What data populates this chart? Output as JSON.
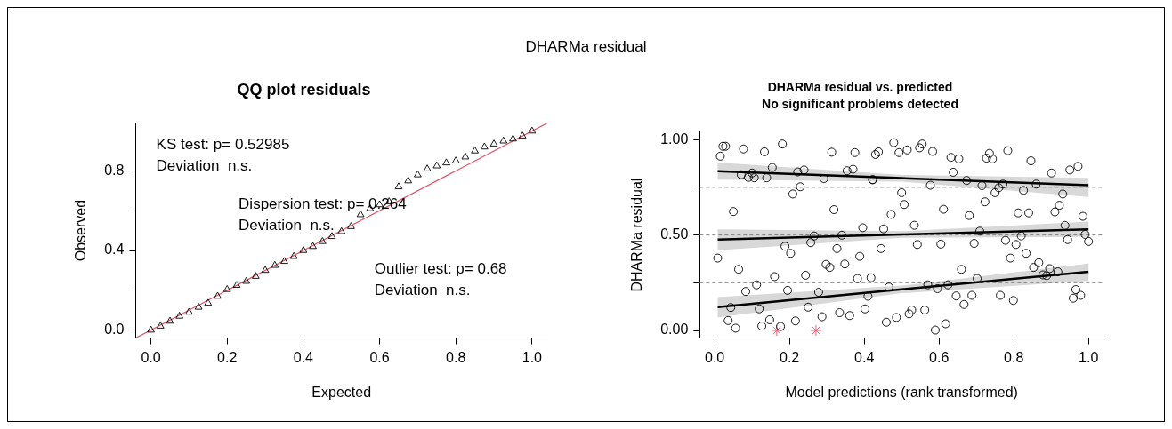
{
  "chart_data": [
    {
      "type": "other",
      "title": "DHARMa residual"
    },
    {
      "type": "scatter",
      "title": "QQ plot residuals",
      "xlabel": "Expected",
      "ylabel": "Observed",
      "marker": "triangle",
      "xlim": [
        -0.04,
        1.04
      ],
      "ylim": [
        -0.04,
        1.04
      ],
      "xticks": [
        {
          "value": 0,
          "label": "0.0"
        },
        {
          "value": 0.2,
          "label": "0.2"
        },
        {
          "value": 0.4,
          "label": "0.4"
        },
        {
          "value": 0.6,
          "label": "0.6"
        },
        {
          "value": 0.8,
          "label": "0.8"
        },
        {
          "value": 1,
          "label": "1.0"
        }
      ],
      "yticks": [
        {
          "value": 0,
          "label": "0.0"
        },
        {
          "value": 0.2,
          "label": null
        },
        {
          "value": 0.4,
          "label": "0.4"
        },
        {
          "value": 0.6,
          "label": null
        },
        {
          "value": 0.8,
          "label": "0.8"
        }
      ],
      "annotations": [
        "KS test: p= 0.52985\nDeviation  n.s.",
        "Dispersion test: p= 0.264\nDeviation  n.s.",
        "Outlier test: p= 0.68\nDeviation  n.s."
      ],
      "series": [
        {
          "type": "scatter",
          "color": "#000000",
          "x": [
            0,
            0.025,
            0.05,
            0.075,
            0.1,
            0.125,
            0.15,
            0.175,
            0.2,
            0.225,
            0.25,
            0.275,
            0.3,
            0.325,
            0.35,
            0.375,
            0.4,
            0.425,
            0.45,
            0.475,
            0.5,
            0.525,
            0.55,
            0.575,
            0.6,
            0.625,
            0.65,
            0.675,
            0.7,
            0.725,
            0.75,
            0.775,
            0.8,
            0.825,
            0.85,
            0.875,
            0.9,
            0.925,
            0.95,
            0.975,
            1
          ],
          "values": [
            0,
            0.02,
            0.045,
            0.07,
            0.09,
            0.115,
            0.135,
            0.17,
            0.204,
            0.225,
            0.245,
            0.27,
            0.3,
            0.325,
            0.345,
            0.37,
            0.4,
            0.42,
            0.445,
            0.47,
            0.495,
            0.52,
            0.58,
            0.61,
            0.63,
            0.645,
            0.72,
            0.75,
            0.78,
            0.81,
            0.825,
            0.84,
            0.85,
            0.87,
            0.9,
            0.92,
            0.935,
            0.95,
            0.96,
            0.975,
            1
          ]
        },
        {
          "type": "line",
          "color": "#df536b",
          "marker": "none",
          "x": [
            -0.04,
            1.04
          ],
          "values": [
            -0.04,
            1.04
          ]
        }
      ]
    },
    {
      "type": "scatter",
      "title": "DHARMa residual vs. predicted",
      "subtitle": "No significant problems detected",
      "xlabel": "Model predictions (rank transformed)",
      "ylabel": "DHARMa residual",
      "marker": "circle",
      "xlim": [
        -0.04,
        1.04
      ],
      "ylim": [
        -0.04,
        1.04
      ],
      "xticks": [
        {
          "value": 0,
          "label": "0.0"
        },
        {
          "value": 0.2,
          "label": "0.2"
        },
        {
          "value": 0.4,
          "label": "0.4"
        },
        {
          "value": 0.6,
          "label": "0.6"
        },
        {
          "value": 0.8,
          "label": "0.8"
        },
        {
          "value": 1,
          "label": "1.0"
        }
      ],
      "yticks": [
        {
          "value": 0,
          "label": "0.00"
        },
        {
          "value": 0.25,
          "label": null
        },
        {
          "value": 0.5,
          "label": "0.50"
        },
        {
          "value": 0.75,
          "label": null
        },
        {
          "value": 1,
          "label": "1.00"
        }
      ],
      "ref_lines": [
        {
          "axis": "y",
          "value": 0.25,
          "color": "#808080",
          "line_style": "dashed"
        },
        {
          "axis": "y",
          "value": 0.5,
          "color": "#808080",
          "line_style": "dashed"
        },
        {
          "axis": "y",
          "value": 0.75,
          "color": "#808080",
          "line_style": "dashed"
        }
      ],
      "series": [
        {
          "type": "scatter",
          "color": "#000000",
          "x": [
            0.015,
            0.022,
            0.029,
            0.077,
            0.133,
            0.181,
            0.313,
            0.375,
            0.071,
            0.09,
            0.1,
            0.106,
            0.139,
            0.154,
            0.209,
            0.222,
            0.229,
            0.239,
            0.292,
            0.354,
            0.37,
            0.422,
            0.05,
            0.319,
            0.188,
            0.203,
            0.257,
            0.266,
            0.396,
            0.34,
            0.327,
            0.008,
            0.064,
            0.083,
            0.112,
            0.16,
            0.195,
            0.243,
            0.278,
            0.298,
            0.308,
            0.348,
            0.382,
            0.388,
            0.418,
            0.043,
            0.036,
            0.056,
            0.119,
            0.126,
            0.147,
            0.176,
            0.216,
            0.25,
            0.287,
            0.334,
            0.361,
            0.402,
            0.41,
            0.43,
            0.438,
            0.479,
            0.493,
            0.515,
            0.548,
            0.555,
            0.583,
            0.632,
            0.653,
            0.727,
            0.735,
            0.743,
            0.784,
            0.846,
            0.95,
            0.972,
            0.901,
            0.423,
            0.5,
            0.507,
            0.472,
            0.577,
            0.638,
            0.674,
            0.715,
            0.723,
            0.75,
            0.76,
            0.771,
            0.826,
            0.86,
            0.931,
            0.922,
            0.91,
            0.812,
            0.84,
            0.612,
            0.681,
            0.985,
            0.452,
            0.445,
            0.534,
            0.542,
            0.605,
            0.694,
            0.709,
            0.778,
            0.806,
            0.82,
            0.791,
            0.833,
            0.937,
            0.944,
            0.991,
            1,
            0.466,
            0.459,
            0.486,
            0.52,
            0.527,
            0.562,
            0.57,
            0.596,
            0.624,
            0.59,
            0.618,
            0.646,
            0.667,
            0.688,
            0.66,
            0.702,
            0.764,
            0.799,
            0.853,
            0.867,
            0.878,
            0.888,
            0.896,
            0.918,
            0.959,
            0.966,
            0.979
          ],
          "values": [
            0.913,
            0.965,
            0.965,
            0.951,
            0.936,
            0.977,
            0.934,
            0.932,
            0.816,
            0.802,
            0.825,
            0.8,
            0.8,
            0.854,
            0.715,
            0.831,
            0.753,
            0.841,
            0.796,
            0.837,
            0.845,
            0.79,
            0.623,
            0.633,
            0.441,
            0.404,
            0.46,
            0.495,
            0.538,
            0.499,
            0.429,
            0.379,
            0.32,
            0.204,
            0.239,
            0.282,
            0.21,
            0.289,
            0.2,
            0.346,
            0.33,
            0.348,
            0.272,
            0.388,
            0.276,
            0.12,
            0.052,
            0.012,
            0.113,
            0.023,
            0.056,
            0.021,
            0.05,
            0.122,
            0.072,
            0.093,
            0.078,
            0.113,
            0.179,
            0.922,
            0.936,
            0.984,
            0.932,
            0.946,
            0.957,
            0.977,
            0.938,
            0.907,
            0.899,
            0.903,
            0.928,
            0.899,
            0.942,
            0.889,
            0.841,
            0.86,
            0.825,
            0.79,
            0.722,
            0.66,
            0.608,
            0.761,
            0.829,
            0.786,
            0.759,
            0.674,
            0.722,
            0.748,
            0.767,
            0.734,
            0.767,
            0.715,
            0.656,
            0.621,
            0.616,
            0.616,
            0.635,
            0.602,
            0.598,
            0.532,
            0.429,
            0.551,
            0.45,
            0.452,
            0.456,
            0.52,
            0.472,
            0.45,
            0.495,
            0.379,
            0.404,
            0.55,
            0.476,
            0.503,
            0.466,
            0.227,
            0.043,
            0.068,
            0.087,
            0.107,
            0.107,
            0.239,
            0.219,
            0.239,
            0.002,
            0.035,
            0.181,
            0.136,
            0.184,
            0.32,
            0.272,
            0.184,
            0.157,
            0.33,
            0.355,
            0.291,
            0.287,
            0.324,
            0.307,
            0.169,
            0.214,
            0.184
          ]
        },
        {
          "type": "scatter",
          "color": "#df536b",
          "marker": "cross",
          "x": [
            0.166,
            0.271
          ],
          "values": [
            0,
            0
          ]
        },
        {
          "type": "line",
          "color": "#000000",
          "marker": "none",
          "x": [
            0.008,
            0.5,
            1
          ],
          "values": [
            0.122,
            0.215,
            0.307
          ],
          "lower": [
            0.068,
            0.195,
            0.26
          ],
          "upper": [
            0.175,
            0.235,
            0.35
          ]
        },
        {
          "type": "line",
          "color": "#000000",
          "marker": "none",
          "x": [
            0.008,
            0.5,
            1
          ],
          "values": [
            0.476,
            0.503,
            0.53
          ],
          "lower": [
            0.42,
            0.485,
            0.49
          ],
          "upper": [
            0.53,
            0.52,
            0.57
          ]
        },
        {
          "type": "line",
          "color": "#000000",
          "marker": "none",
          "x": [
            0.008,
            0.5,
            1
          ],
          "values": [
            0.835,
            0.798,
            0.761
          ],
          "lower": [
            0.79,
            0.78,
            0.7
          ],
          "upper": [
            0.88,
            0.815,
            0.8
          ]
        }
      ]
    }
  ]
}
